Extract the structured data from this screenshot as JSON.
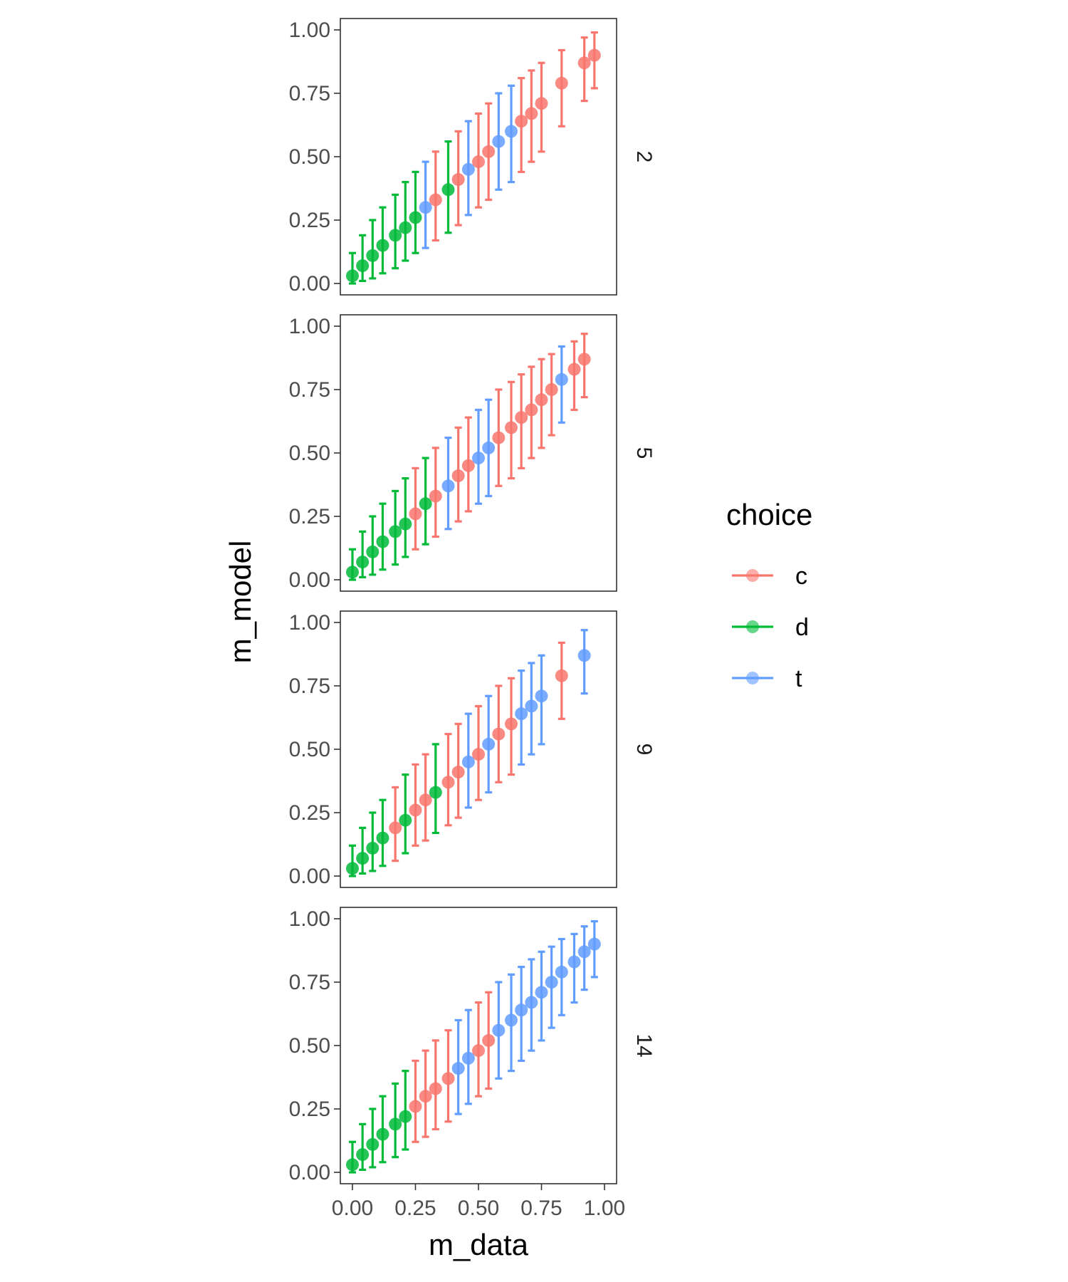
{
  "chart_data": {
    "type": "scatter",
    "subtype": "pointrange-facets",
    "xlabel": "m_data",
    "ylabel": "m_model",
    "xlim": [
      0,
      1
    ],
    "ylim": [
      0,
      1
    ],
    "x_ticks": [
      "0.00",
      "0.25",
      "0.50",
      "0.75",
      "1.00"
    ],
    "y_ticks": [
      "0.00",
      "0.25",
      "0.50",
      "0.75",
      "1.00"
    ],
    "grid": false,
    "legend": {
      "title": "choice",
      "position": "right",
      "entries": [
        {
          "label": "c",
          "color": "#F8766D"
        },
        {
          "label": "d",
          "color": "#00BA38"
        },
        {
          "label": "t",
          "color": "#619CFF"
        }
      ]
    },
    "facets": [
      {
        "label": "2",
        "series": [
          {
            "choice": "d",
            "points": [
              {
                "x": 0.0,
                "y": 0.03,
                "ymin": 0.0,
                "ymax": 0.12
              },
              {
                "x": 0.04,
                "y": 0.07,
                "ymin": 0.01,
                "ymax": 0.19
              },
              {
                "x": 0.08,
                "y": 0.11,
                "ymin": 0.02,
                "ymax": 0.25
              },
              {
                "x": 0.12,
                "y": 0.15,
                "ymin": 0.04,
                "ymax": 0.3
              },
              {
                "x": 0.17,
                "y": 0.19,
                "ymin": 0.06,
                "ymax": 0.35
              },
              {
                "x": 0.21,
                "y": 0.22,
                "ymin": 0.09,
                "ymax": 0.4
              },
              {
                "x": 0.25,
                "y": 0.26,
                "ymin": 0.12,
                "ymax": 0.44
              },
              {
                "x": 0.38,
                "y": 0.37,
                "ymin": 0.2,
                "ymax": 0.56
              }
            ]
          },
          {
            "choice": "t",
            "points": [
              {
                "x": 0.29,
                "y": 0.3,
                "ymin": 0.14,
                "ymax": 0.48
              },
              {
                "x": 0.46,
                "y": 0.45,
                "ymin": 0.27,
                "ymax": 0.64
              },
              {
                "x": 0.58,
                "y": 0.56,
                "ymin": 0.37,
                "ymax": 0.75
              },
              {
                "x": 0.63,
                "y": 0.6,
                "ymin": 0.4,
                "ymax": 0.78
              }
            ]
          },
          {
            "choice": "c",
            "points": [
              {
                "x": 0.33,
                "y": 0.33,
                "ymin": 0.17,
                "ymax": 0.52
              },
              {
                "x": 0.42,
                "y": 0.41,
                "ymin": 0.23,
                "ymax": 0.6
              },
              {
                "x": 0.5,
                "y": 0.48,
                "ymin": 0.3,
                "ymax": 0.67
              },
              {
                "x": 0.54,
                "y": 0.52,
                "ymin": 0.33,
                "ymax": 0.71
              },
              {
                "x": 0.67,
                "y": 0.64,
                "ymin": 0.44,
                "ymax": 0.81
              },
              {
                "x": 0.71,
                "y": 0.67,
                "ymin": 0.48,
                "ymax": 0.84
              },
              {
                "x": 0.75,
                "y": 0.71,
                "ymin": 0.52,
                "ymax": 0.87
              },
              {
                "x": 0.83,
                "y": 0.79,
                "ymin": 0.62,
                "ymax": 0.92
              },
              {
                "x": 0.92,
                "y": 0.87,
                "ymin": 0.72,
                "ymax": 0.97
              },
              {
                "x": 0.96,
                "y": 0.9,
                "ymin": 0.77,
                "ymax": 0.99
              }
            ]
          }
        ]
      },
      {
        "label": "5",
        "series": [
          {
            "choice": "d",
            "points": [
              {
                "x": 0.0,
                "y": 0.03,
                "ymin": 0.0,
                "ymax": 0.12
              },
              {
                "x": 0.04,
                "y": 0.07,
                "ymin": 0.01,
                "ymax": 0.19
              },
              {
                "x": 0.08,
                "y": 0.11,
                "ymin": 0.02,
                "ymax": 0.25
              },
              {
                "x": 0.12,
                "y": 0.15,
                "ymin": 0.04,
                "ymax": 0.3
              },
              {
                "x": 0.17,
                "y": 0.19,
                "ymin": 0.06,
                "ymax": 0.35
              },
              {
                "x": 0.21,
                "y": 0.22,
                "ymin": 0.09,
                "ymax": 0.4
              },
              {
                "x": 0.29,
                "y": 0.3,
                "ymin": 0.14,
                "ymax": 0.48
              }
            ]
          },
          {
            "choice": "c",
            "points": [
              {
                "x": 0.25,
                "y": 0.26,
                "ymin": 0.12,
                "ymax": 0.44
              },
              {
                "x": 0.33,
                "y": 0.33,
                "ymin": 0.17,
                "ymax": 0.52
              },
              {
                "x": 0.42,
                "y": 0.41,
                "ymin": 0.23,
                "ymax": 0.6
              },
              {
                "x": 0.46,
                "y": 0.45,
                "ymin": 0.27,
                "ymax": 0.64
              },
              {
                "x": 0.58,
                "y": 0.56,
                "ymin": 0.37,
                "ymax": 0.75
              },
              {
                "x": 0.63,
                "y": 0.6,
                "ymin": 0.4,
                "ymax": 0.78
              },
              {
                "x": 0.67,
                "y": 0.64,
                "ymin": 0.44,
                "ymax": 0.81
              },
              {
                "x": 0.71,
                "y": 0.67,
                "ymin": 0.48,
                "ymax": 0.84
              },
              {
                "x": 0.75,
                "y": 0.71,
                "ymin": 0.52,
                "ymax": 0.87
              },
              {
                "x": 0.79,
                "y": 0.75,
                "ymin": 0.57,
                "ymax": 0.89
              },
              {
                "x": 0.88,
                "y": 0.83,
                "ymin": 0.67,
                "ymax": 0.94
              },
              {
                "x": 0.92,
                "y": 0.87,
                "ymin": 0.72,
                "ymax": 0.97
              }
            ]
          },
          {
            "choice": "t",
            "points": [
              {
                "x": 0.38,
                "y": 0.37,
                "ymin": 0.2,
                "ymax": 0.56
              },
              {
                "x": 0.5,
                "y": 0.48,
                "ymin": 0.3,
                "ymax": 0.67
              },
              {
                "x": 0.54,
                "y": 0.52,
                "ymin": 0.33,
                "ymax": 0.71
              },
              {
                "x": 0.83,
                "y": 0.79,
                "ymin": 0.62,
                "ymax": 0.92
              }
            ]
          }
        ]
      },
      {
        "label": "9",
        "series": [
          {
            "choice": "d",
            "points": [
              {
                "x": 0.0,
                "y": 0.03,
                "ymin": 0.0,
                "ymax": 0.12
              },
              {
                "x": 0.04,
                "y": 0.07,
                "ymin": 0.01,
                "ymax": 0.19
              },
              {
                "x": 0.08,
                "y": 0.11,
                "ymin": 0.02,
                "ymax": 0.25
              },
              {
                "x": 0.12,
                "y": 0.15,
                "ymin": 0.04,
                "ymax": 0.3
              },
              {
                "x": 0.21,
                "y": 0.22,
                "ymin": 0.09,
                "ymax": 0.4
              },
              {
                "x": 0.33,
                "y": 0.33,
                "ymin": 0.17,
                "ymax": 0.52
              }
            ]
          },
          {
            "choice": "c",
            "points": [
              {
                "x": 0.17,
                "y": 0.19,
                "ymin": 0.06,
                "ymax": 0.35
              },
              {
                "x": 0.25,
                "y": 0.26,
                "ymin": 0.12,
                "ymax": 0.44
              },
              {
                "x": 0.29,
                "y": 0.3,
                "ymin": 0.14,
                "ymax": 0.48
              },
              {
                "x": 0.38,
                "y": 0.37,
                "ymin": 0.2,
                "ymax": 0.56
              },
              {
                "x": 0.42,
                "y": 0.41,
                "ymin": 0.23,
                "ymax": 0.6
              },
              {
                "x": 0.5,
                "y": 0.48,
                "ymin": 0.3,
                "ymax": 0.67
              },
              {
                "x": 0.58,
                "y": 0.56,
                "ymin": 0.37,
                "ymax": 0.75
              },
              {
                "x": 0.63,
                "y": 0.6,
                "ymin": 0.4,
                "ymax": 0.78
              },
              {
                "x": 0.83,
                "y": 0.79,
                "ymin": 0.62,
                "ymax": 0.92
              }
            ]
          },
          {
            "choice": "t",
            "points": [
              {
                "x": 0.46,
                "y": 0.45,
                "ymin": 0.27,
                "ymax": 0.64
              },
              {
                "x": 0.54,
                "y": 0.52,
                "ymin": 0.33,
                "ymax": 0.71
              },
              {
                "x": 0.67,
                "y": 0.64,
                "ymin": 0.44,
                "ymax": 0.81
              },
              {
                "x": 0.71,
                "y": 0.67,
                "ymin": 0.48,
                "ymax": 0.84
              },
              {
                "x": 0.75,
                "y": 0.71,
                "ymin": 0.52,
                "ymax": 0.87
              },
              {
                "x": 0.92,
                "y": 0.87,
                "ymin": 0.72,
                "ymax": 0.97
              }
            ]
          }
        ]
      },
      {
        "label": "14",
        "series": [
          {
            "choice": "d",
            "points": [
              {
                "x": 0.0,
                "y": 0.03,
                "ymin": 0.0,
                "ymax": 0.12
              },
              {
                "x": 0.04,
                "y": 0.07,
                "ymin": 0.01,
                "ymax": 0.19
              },
              {
                "x": 0.08,
                "y": 0.11,
                "ymin": 0.02,
                "ymax": 0.25
              },
              {
                "x": 0.12,
                "y": 0.15,
                "ymin": 0.04,
                "ymax": 0.3
              },
              {
                "x": 0.17,
                "y": 0.19,
                "ymin": 0.06,
                "ymax": 0.35
              },
              {
                "x": 0.21,
                "y": 0.22,
                "ymin": 0.09,
                "ymax": 0.4
              }
            ]
          },
          {
            "choice": "c",
            "points": [
              {
                "x": 0.25,
                "y": 0.26,
                "ymin": 0.12,
                "ymax": 0.44
              },
              {
                "x": 0.29,
                "y": 0.3,
                "ymin": 0.14,
                "ymax": 0.48
              },
              {
                "x": 0.33,
                "y": 0.33,
                "ymin": 0.17,
                "ymax": 0.52
              },
              {
                "x": 0.38,
                "y": 0.37,
                "ymin": 0.2,
                "ymax": 0.56
              },
              {
                "x": 0.5,
                "y": 0.48,
                "ymin": 0.3,
                "ymax": 0.67
              },
              {
                "x": 0.54,
                "y": 0.52,
                "ymin": 0.33,
                "ymax": 0.71
              }
            ]
          },
          {
            "choice": "t",
            "points": [
              {
                "x": 0.42,
                "y": 0.41,
                "ymin": 0.23,
                "ymax": 0.6
              },
              {
                "x": 0.46,
                "y": 0.45,
                "ymin": 0.27,
                "ymax": 0.64
              },
              {
                "x": 0.58,
                "y": 0.56,
                "ymin": 0.37,
                "ymax": 0.75
              },
              {
                "x": 0.63,
                "y": 0.6,
                "ymin": 0.4,
                "ymax": 0.78
              },
              {
                "x": 0.67,
                "y": 0.64,
                "ymin": 0.44,
                "ymax": 0.81
              },
              {
                "x": 0.71,
                "y": 0.67,
                "ymin": 0.48,
                "ymax": 0.84
              },
              {
                "x": 0.75,
                "y": 0.71,
                "ymin": 0.52,
                "ymax": 0.87
              },
              {
                "x": 0.79,
                "y": 0.75,
                "ymin": 0.57,
                "ymax": 0.89
              },
              {
                "x": 0.83,
                "y": 0.79,
                "ymin": 0.62,
                "ymax": 0.92
              },
              {
                "x": 0.88,
                "y": 0.83,
                "ymin": 0.67,
                "ymax": 0.94
              },
              {
                "x": 0.92,
                "y": 0.87,
                "ymin": 0.72,
                "ymax": 0.97
              },
              {
                "x": 0.96,
                "y": 0.9,
                "ymin": 0.77,
                "ymax": 0.99
              }
            ]
          }
        ]
      }
    ]
  }
}
